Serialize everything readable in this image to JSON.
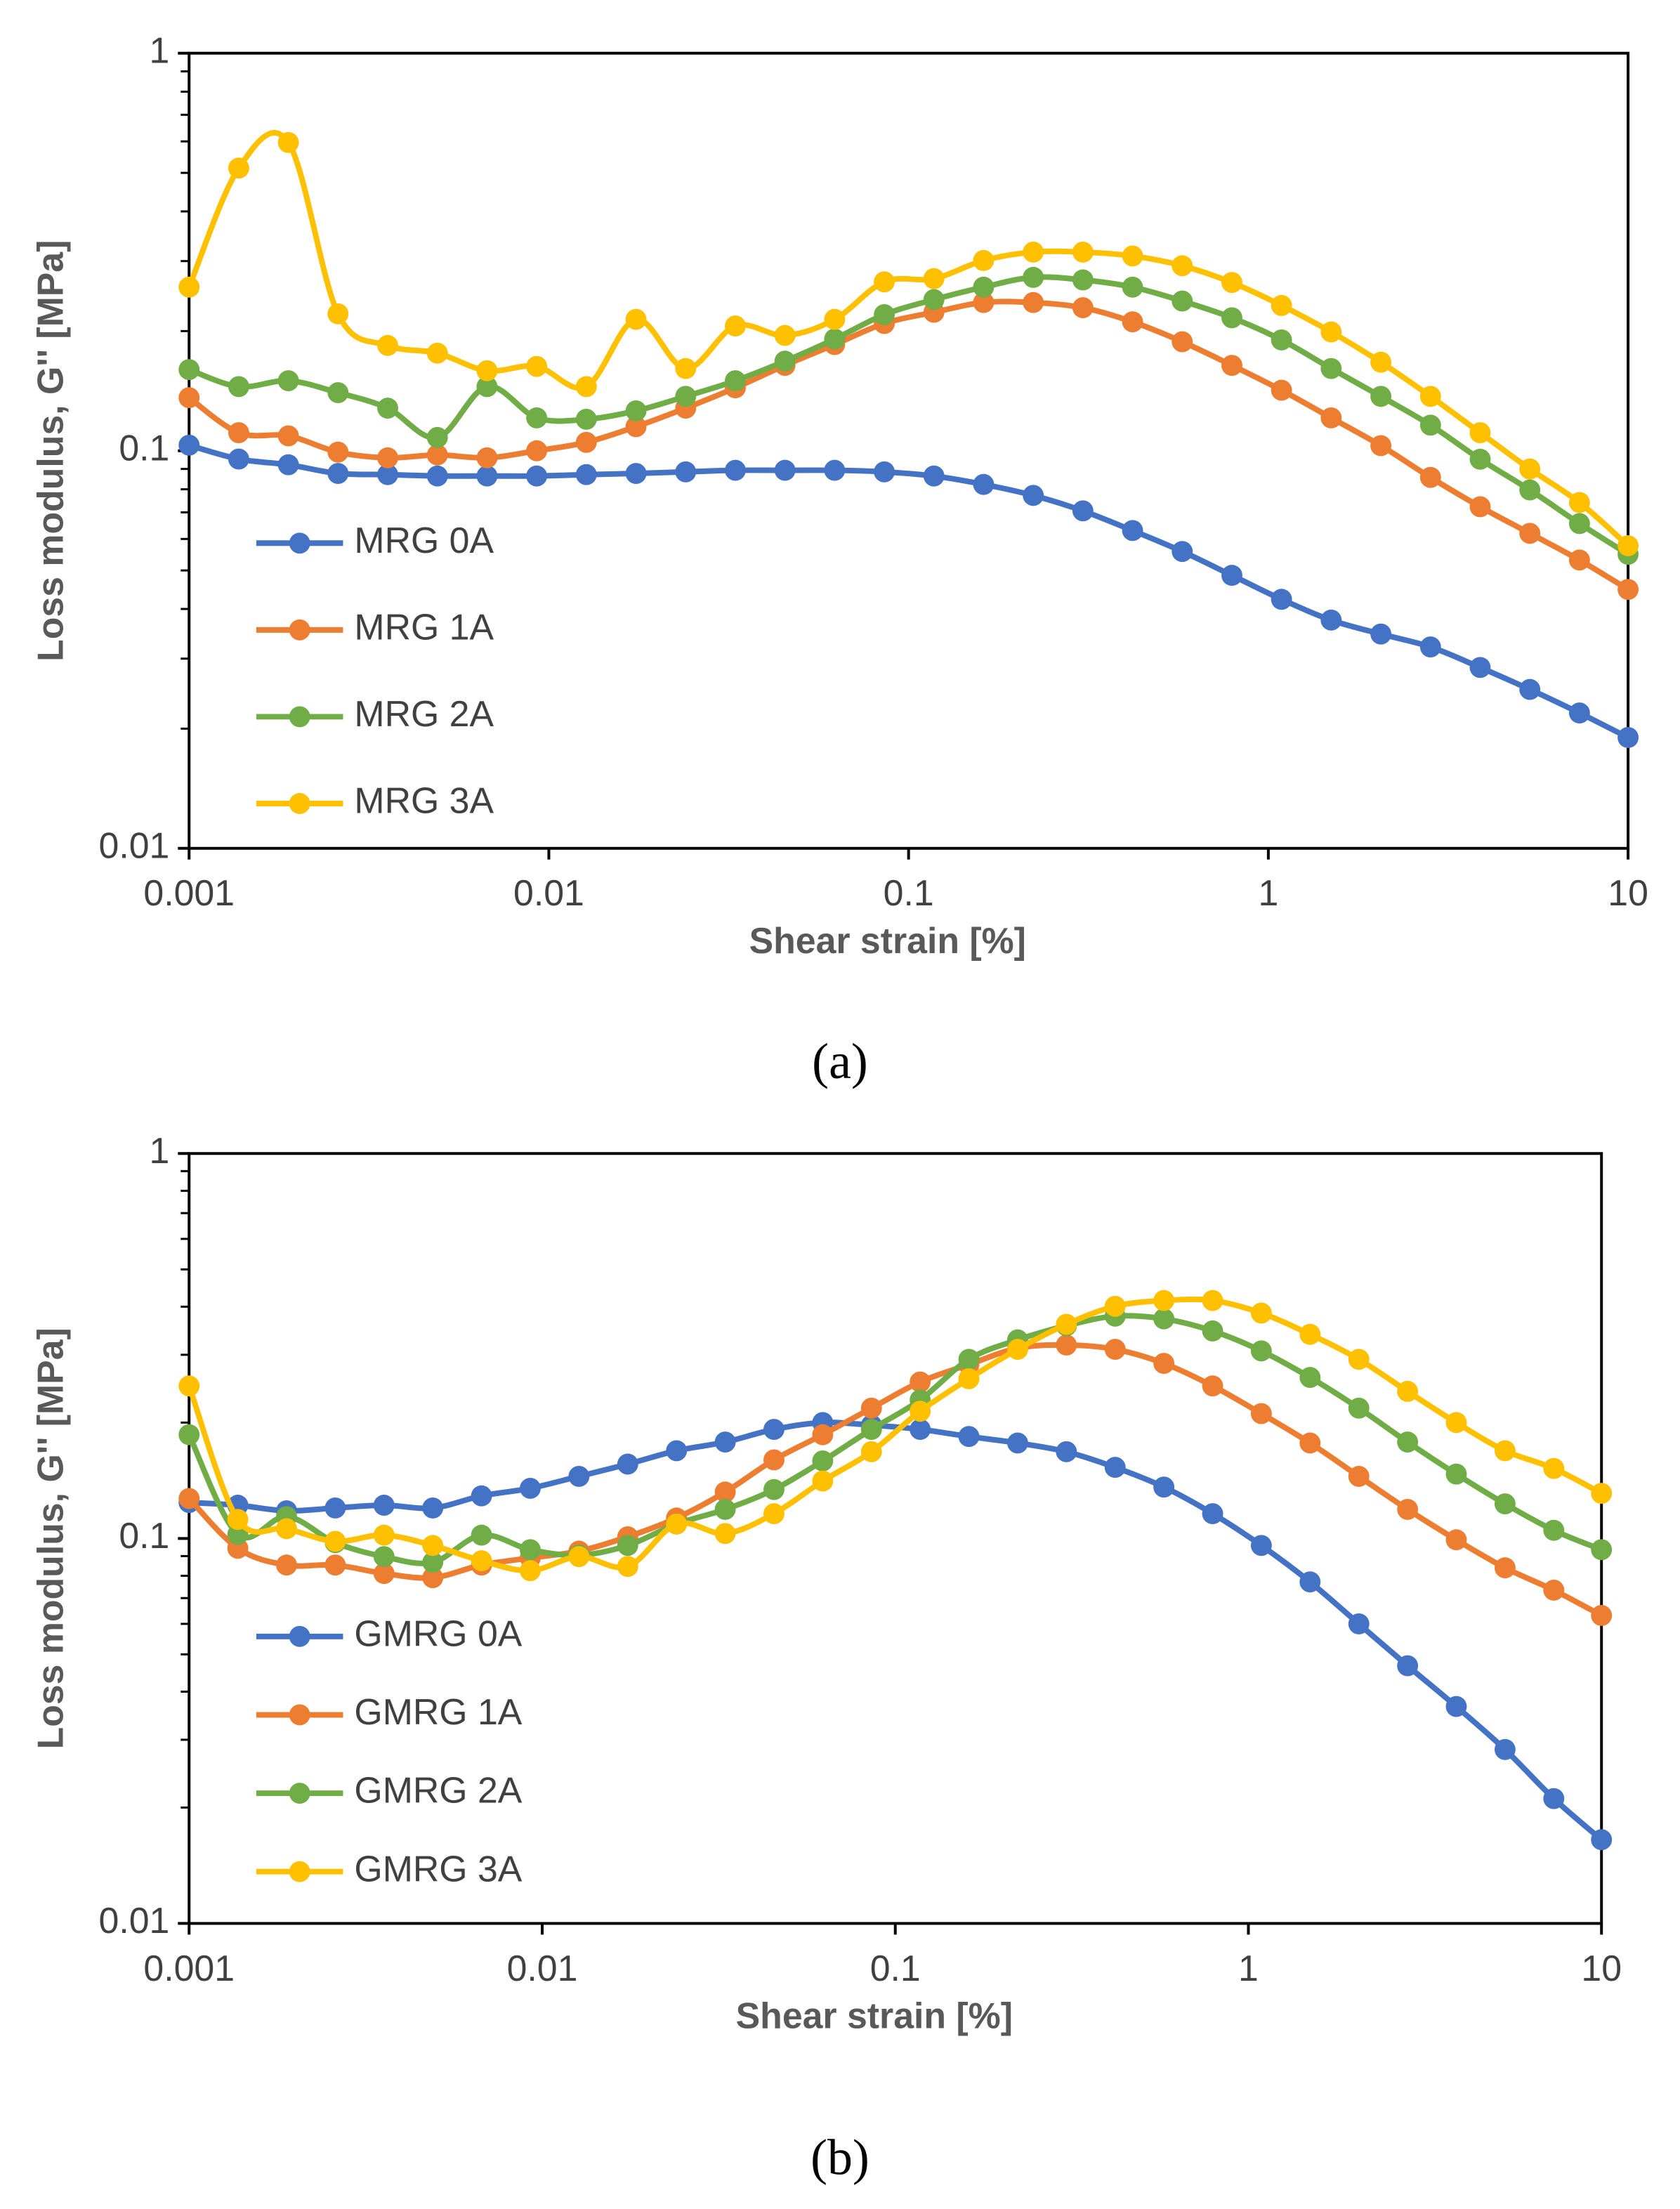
{
  "chart_data": [
    {
      "type": "line",
      "caption": "(a)",
      "xlabel": "Shear strain [%]",
      "ylabel": "Loss modulus, G'' [MPa]",
      "xscale": "log",
      "yscale": "log",
      "legend": "lower left",
      "xlim": [
        0.001,
        10
      ],
      "ylim": [
        0.01,
        1
      ],
      "xticks": [
        0.001,
        0.01,
        0.1,
        1,
        10
      ],
      "yticks": [
        0.01,
        0.1,
        1
      ],
      "yminorticks": [
        0.02,
        0.03,
        0.04,
        0.05,
        0.06,
        0.07,
        0.08,
        0.09,
        0.2,
        0.3,
        0.4,
        0.5,
        0.6,
        0.7,
        0.8,
        0.9
      ],
      "x": [
        0.001,
        0.001374,
        0.001888,
        0.002594,
        0.003565,
        0.004899,
        0.006732,
        0.009251,
        0.01271,
        0.01747,
        0.02401,
        0.03299,
        0.04533,
        0.06229,
        0.0856,
        0.1176,
        0.1616,
        0.2221,
        0.3052,
        0.4194,
        0.5763,
        0.792,
        1.088,
        1.495,
        2.055,
        2.824,
        3.88,
        5.332,
        7.327,
        10
      ],
      "series": [
        {
          "name": "MRG 0A",
          "color": "#4472c4",
          "values": [
            0.1033,
            0.0953,
            0.0922,
            0.0877,
            0.0871,
            0.0864,
            0.0864,
            0.0864,
            0.0871,
            0.0877,
            0.0885,
            0.0893,
            0.0893,
            0.0893,
            0.0885,
            0.0864,
            0.0823,
            0.0772,
            0.0706,
            0.063,
            0.0558,
            0.0486,
            0.0423,
            0.0375,
            0.0346,
            0.0321,
            0.0285,
            0.0251,
            0.0219,
            0.019
          ]
        },
        {
          "name": "MRG 1A",
          "color": "#ed7d31",
          "values": [
            0.136,
            0.111,
            0.109,
            0.0992,
            0.096,
            0.0976,
            0.096,
            0.1,
            0.105,
            0.115,
            0.128,
            0.144,
            0.164,
            0.185,
            0.209,
            0.223,
            0.236,
            0.236,
            0.229,
            0.211,
            0.188,
            0.164,
            0.142,
            0.121,
            0.103,
            0.0857,
            0.0723,
            0.062,
            0.0531,
            0.0448
          ]
        },
        {
          "name": "MRG 2A",
          "color": "#70ad47",
          "values": [
            0.16,
            0.145,
            0.15,
            0.14,
            0.128,
            0.108,
            0.145,
            0.121,
            0.12,
            0.126,
            0.137,
            0.15,
            0.168,
            0.191,
            0.22,
            0.24,
            0.258,
            0.273,
            0.269,
            0.258,
            0.238,
            0.216,
            0.19,
            0.161,
            0.137,
            0.116,
            0.0952,
            0.0797,
            0.0656,
            0.0549
          ]
        },
        {
          "name": "MRG 3A",
          "color": "#ffc000",
          "values": [
            0.258,
            0.514,
            0.596,
            0.221,
            0.184,
            0.176,
            0.159,
            0.163,
            0.145,
            0.214,
            0.161,
            0.206,
            0.195,
            0.214,
            0.266,
            0.271,
            0.301,
            0.316,
            0.316,
            0.309,
            0.292,
            0.265,
            0.232,
            0.199,
            0.167,
            0.137,
            0.111,
            0.09,
            0.0741,
            0.0577
          ]
        }
      ]
    },
    {
      "type": "line",
      "caption": "(b)",
      "xlabel": "Shear strain [%]",
      "ylabel": "Loss modulus, G'' [MPa]",
      "xscale": "log",
      "yscale": "log",
      "legend": "lower left",
      "xlim": [
        0.001,
        10
      ],
      "ylim": [
        0.01,
        1
      ],
      "xticks": [
        0.001,
        0.01,
        0.1,
        1,
        10
      ],
      "yticks": [
        0.01,
        0.1,
        1
      ],
      "yminorticks": [
        0.02,
        0.03,
        0.04,
        0.05,
        0.06,
        0.07,
        0.08,
        0.09,
        0.2,
        0.3,
        0.4,
        0.5,
        0.6,
        0.7,
        0.8,
        0.9
      ],
      "x": [
        0.001,
        0.001374,
        0.001888,
        0.002594,
        0.003565,
        0.004899,
        0.006732,
        0.009251,
        0.01271,
        0.01747,
        0.02401,
        0.03299,
        0.04533,
        0.06229,
        0.0856,
        0.1176,
        0.1616,
        0.2221,
        0.3052,
        0.4194,
        0.5763,
        0.792,
        1.088,
        1.495,
        2.055,
        2.824,
        3.88,
        5.332,
        7.327,
        10
      ],
      "series": [
        {
          "name": "GMRG 0A",
          "color": "#4472c4",
          "values": [
            0.124,
            0.122,
            0.118,
            0.12,
            0.122,
            0.12,
            0.129,
            0.135,
            0.145,
            0.156,
            0.169,
            0.178,
            0.192,
            0.2,
            0.197,
            0.192,
            0.184,
            0.177,
            0.168,
            0.153,
            0.136,
            0.116,
            0.0959,
            0.0771,
            0.06,
            0.0467,
            0.0366,
            0.0283,
            0.0211,
            0.0165
          ]
        },
        {
          "name": "GMRG 1A",
          "color": "#ed7d31",
          "values": [
            0.127,
            0.0943,
            0.0853,
            0.0853,
            0.0811,
            0.0791,
            0.0853,
            0.089,
            0.0927,
            0.101,
            0.113,
            0.132,
            0.16,
            0.186,
            0.218,
            0.255,
            0.283,
            0.312,
            0.318,
            0.31,
            0.285,
            0.249,
            0.211,
            0.177,
            0.145,
            0.119,
            0.0992,
            0.0839,
            0.0734,
            0.0631
          ]
        },
        {
          "name": "GMRG 2A",
          "color": "#70ad47",
          "values": [
            0.186,
            0.1025,
            0.114,
            0.0975,
            0.0897,
            0.0867,
            0.102,
            0.0935,
            0.0905,
            0.0959,
            0.109,
            0.119,
            0.134,
            0.159,
            0.192,
            0.229,
            0.292,
            0.328,
            0.357,
            0.378,
            0.372,
            0.346,
            0.307,
            0.262,
            0.218,
            0.178,
            0.147,
            0.123,
            0.105,
            0.0935
          ]
        },
        {
          "name": "GMRG 3A",
          "color": "#ffc000",
          "values": [
            0.249,
            0.112,
            0.106,
            0.0983,
            0.102,
            0.0959,
            0.0875,
            0.0825,
            0.0897,
            0.0846,
            0.109,
            0.103,
            0.116,
            0.141,
            0.168,
            0.214,
            0.26,
            0.31,
            0.36,
            0.401,
            0.415,
            0.415,
            0.385,
            0.339,
            0.292,
            0.241,
            0.2,
            0.169,
            0.152,
            0.131
          ]
        }
      ]
    }
  ]
}
